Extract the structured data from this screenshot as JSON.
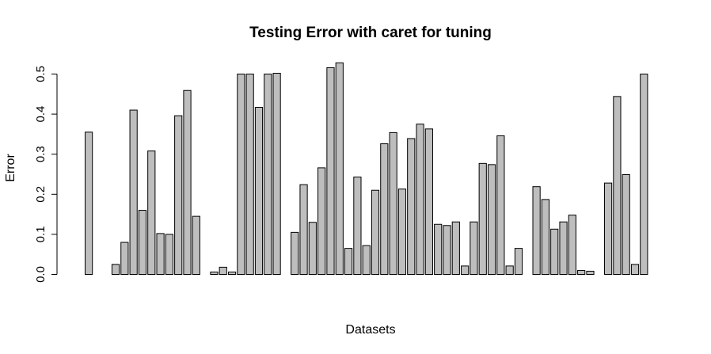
{
  "chart_data": {
    "type": "bar",
    "title": "Testing Error with caret for tuning",
    "xlabel": "Datasets",
    "ylabel": "Error",
    "ylim": [
      0,
      0.53
    ],
    "yticks": [
      "0.0",
      "0.1",
      "0.2",
      "0.3",
      "0.4",
      "0.5"
    ],
    "bar_color": "#bebebe",
    "values": [
      0.355,
      0.0,
      0.0,
      0.025,
      0.08,
      0.41,
      0.16,
      0.308,
      0.102,
      0.1,
      0.396,
      0.459,
      0.145,
      0.0,
      0.006,
      0.018,
      0.006,
      0.5,
      0.5,
      0.417,
      0.5,
      0.502,
      0.0,
      0.105,
      0.224,
      0.13,
      0.266,
      0.516,
      0.528,
      0.065,
      0.243,
      0.072,
      0.21,
      0.326,
      0.354,
      0.213,
      0.339,
      0.375,
      0.363,
      0.125,
      0.122,
      0.131,
      0.021,
      0.131,
      0.277,
      0.274,
      0.346,
      0.021,
      0.065,
      0.0,
      0.219,
      0.187,
      0.113,
      0.131,
      0.148,
      0.01,
      0.008,
      0.0,
      0.228,
      0.444,
      0.249,
      0.025,
      0.5,
      0.0
    ]
  }
}
